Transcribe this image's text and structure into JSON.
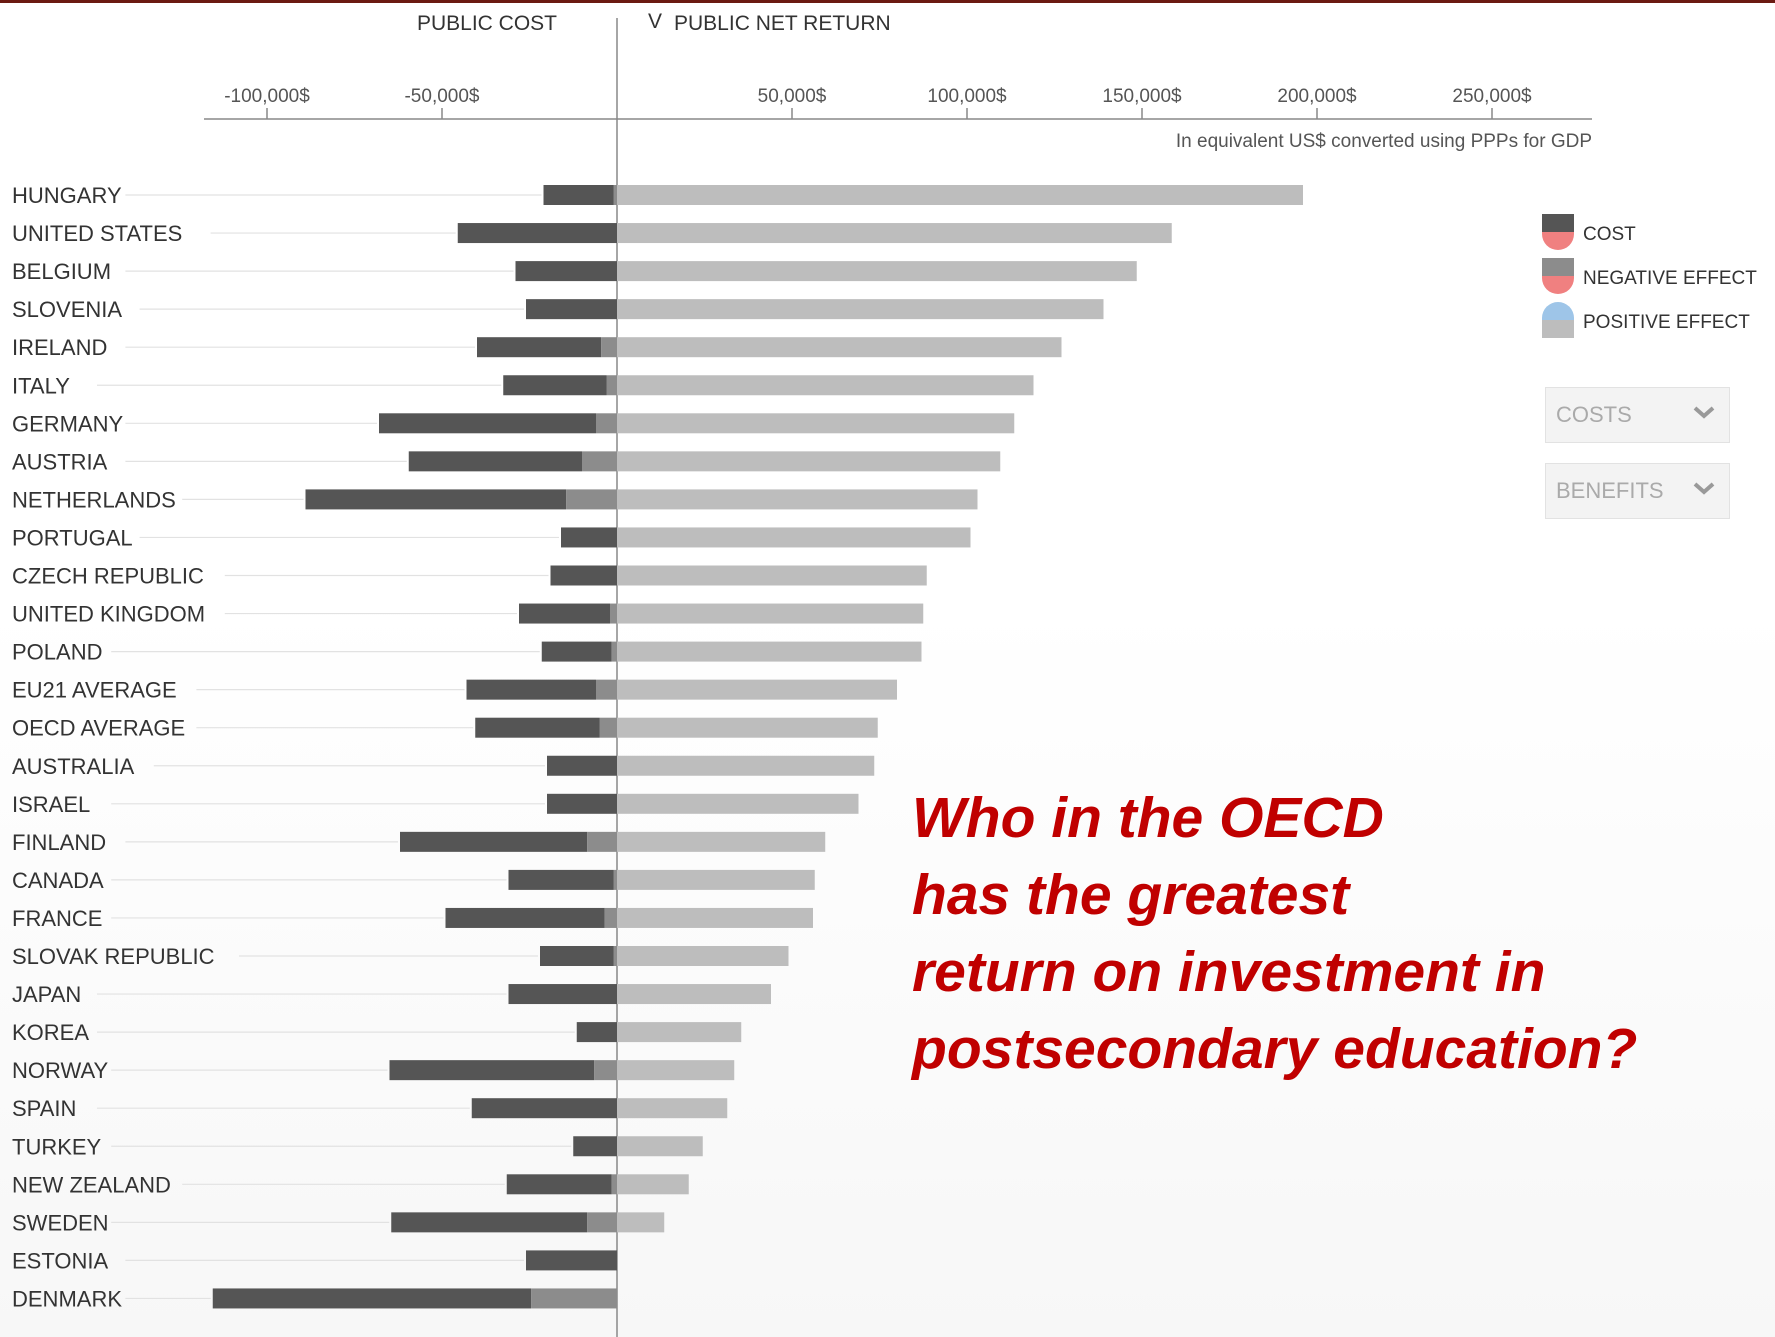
{
  "header": {
    "left_title": "PUBLIC COST",
    "right_title": "PUBLIC NET RETURN",
    "right_marker": "V",
    "unit_note": "In equivalent US$ converted using PPPs for GDP"
  },
  "legend": {
    "items": [
      {
        "label": "COST",
        "top_color": "#555555",
        "bottom_color": "#f08080"
      },
      {
        "label": "NEGATIVE EFFECT",
        "top_color": "#8c8c8c",
        "bottom_color": "#f08080"
      },
      {
        "label": "POSITIVE EFFECT",
        "top_color": "#9ec5e8",
        "bottom_color": "#bdbdbd"
      }
    ]
  },
  "controls": {
    "costs_label": "COSTS",
    "benefits_label": "BENEFITS"
  },
  "question": {
    "lines": [
      "Who in the OECD",
      "has the greatest",
      "return on  investment in",
      "postsecondary education?"
    ]
  },
  "colors": {
    "cost": "#555555",
    "negative_effect": "#8c8c8c",
    "net_return": "#bdbdbd",
    "average_label": "#3a86c8",
    "question": "#c00000"
  },
  "chart_data": {
    "type": "bar",
    "orientation": "horizontal",
    "xlim": [
      -117000,
      278000
    ],
    "x_ticks": [
      {
        "value": -100000,
        "label": "-100,000$"
      },
      {
        "value": -50000,
        "label": "-50,000$"
      },
      {
        "value": 50000,
        "label": "50,000$"
      },
      {
        "value": 100000,
        "label": "100,000$"
      },
      {
        "value": 150000,
        "label": "150,000$"
      },
      {
        "value": 200000,
        "label": "200,000$"
      },
      {
        "value": 250000,
        "label": "250,000$"
      }
    ],
    "series_names": [
      "COST",
      "NEGATIVE EFFECT",
      "PUBLIC NET RETURN"
    ],
    "rows": [
      {
        "country": "HUNGARY",
        "cost": 20000,
        "negative_effect": 1000,
        "net_return": 196000,
        "average": false
      },
      {
        "country": "UNITED STATES",
        "cost": 45500,
        "negative_effect": 0,
        "net_return": 158500,
        "average": false
      },
      {
        "country": "BELGIUM",
        "cost": 29000,
        "negative_effect": 0,
        "net_return": 148500,
        "average": false
      },
      {
        "country": "SLOVENIA",
        "cost": 26000,
        "negative_effect": 0,
        "net_return": 139000,
        "average": false
      },
      {
        "country": "IRELAND",
        "cost": 35500,
        "negative_effect": 4500,
        "net_return": 127000,
        "average": false
      },
      {
        "country": "ITALY",
        "cost": 29500,
        "negative_effect": 3000,
        "net_return": 119000,
        "average": false
      },
      {
        "country": "GERMANY",
        "cost": 62000,
        "negative_effect": 6000,
        "net_return": 113500,
        "average": false
      },
      {
        "country": "AUSTRIA",
        "cost": 49500,
        "negative_effect": 10000,
        "net_return": 109500,
        "average": false
      },
      {
        "country": "NETHERLANDS",
        "cost": 74500,
        "negative_effect": 14500,
        "net_return": 103000,
        "average": false
      },
      {
        "country": "PORTUGAL",
        "cost": 16000,
        "negative_effect": 0,
        "net_return": 101000,
        "average": false
      },
      {
        "country": "CZECH REPUBLIC",
        "cost": 19000,
        "negative_effect": 0,
        "net_return": 88500,
        "average": false
      },
      {
        "country": "UNITED KINGDOM",
        "cost": 26000,
        "negative_effect": 2000,
        "net_return": 87500,
        "average": false
      },
      {
        "country": "POLAND",
        "cost": 20000,
        "negative_effect": 1500,
        "net_return": 87000,
        "average": false
      },
      {
        "country": "EU21 AVERAGE",
        "cost": 37000,
        "negative_effect": 6000,
        "net_return": 80000,
        "average": true
      },
      {
        "country": "OECD AVERAGE",
        "cost": 35500,
        "negative_effect": 5000,
        "net_return": 74500,
        "average": true
      },
      {
        "country": "AUSTRALIA",
        "cost": 20000,
        "negative_effect": 0,
        "net_return": 73500,
        "average": false
      },
      {
        "country": "ISRAEL",
        "cost": 20000,
        "negative_effect": 0,
        "net_return": 69000,
        "average": false
      },
      {
        "country": "FINLAND",
        "cost": 53500,
        "negative_effect": 8500,
        "net_return": 59500,
        "average": false
      },
      {
        "country": "CANADA",
        "cost": 30000,
        "negative_effect": 1000,
        "net_return": 56500,
        "average": false
      },
      {
        "country": "FRANCE",
        "cost": 45500,
        "negative_effect": 3500,
        "net_return": 56000,
        "average": false
      },
      {
        "country": "SLOVAK REPUBLIC",
        "cost": 21000,
        "negative_effect": 1000,
        "net_return": 49000,
        "average": false
      },
      {
        "country": "JAPAN",
        "cost": 31000,
        "negative_effect": 0,
        "net_return": 44000,
        "average": false
      },
      {
        "country": "KOREA",
        "cost": 11500,
        "negative_effect": 0,
        "net_return": 35500,
        "average": false
      },
      {
        "country": "NORWAY",
        "cost": 58500,
        "negative_effect": 6500,
        "net_return": 33500,
        "average": false
      },
      {
        "country": "SPAIN",
        "cost": 41500,
        "negative_effect": 0,
        "net_return": 31500,
        "average": false
      },
      {
        "country": "TURKEY",
        "cost": 12500,
        "negative_effect": 0,
        "net_return": 24500,
        "average": false
      },
      {
        "country": "NEW ZEALAND",
        "cost": 30000,
        "negative_effect": 1500,
        "net_return": 20500,
        "average": false
      },
      {
        "country": "SWEDEN",
        "cost": 56000,
        "negative_effect": 8500,
        "net_return": 13500,
        "average": false
      },
      {
        "country": "ESTONIA",
        "cost": 26000,
        "negative_effect": 0,
        "net_return": 0,
        "average": false
      },
      {
        "country": "DENMARK",
        "cost": 91000,
        "negative_effect": 24500,
        "net_return": 0,
        "average": false
      }
    ]
  }
}
